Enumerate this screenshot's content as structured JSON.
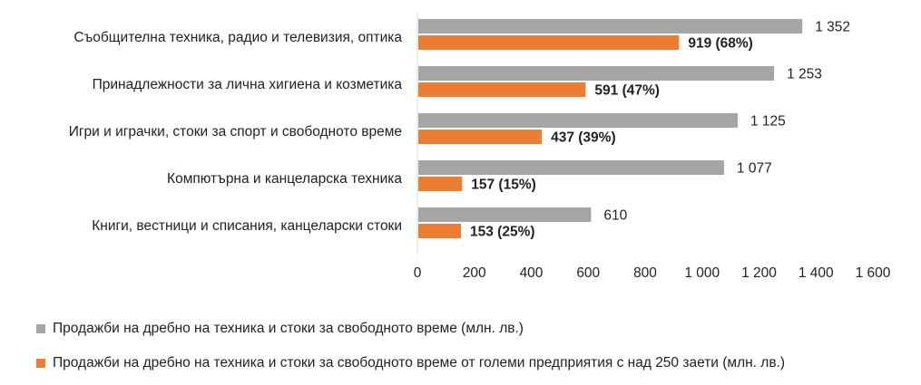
{
  "chart_data": {
    "type": "bar",
    "orientation": "horizontal",
    "categories": [
      "Съобщителна техника, радио и телевизия, оптика",
      "Принадлежности за лична хигиена и козметика",
      "Игри и играчки, стоки за спорт и свободното време",
      "Компютърна и канцеларска техника",
      "Книги, вестници и списания, канцеларски стоки"
    ],
    "series": [
      {
        "name": "Продажби на дребно на техника и стоки за свободното време (млн. лв.)",
        "color": "#a5a5a5",
        "values": [
          1352,
          1253,
          1125,
          1077,
          610
        ],
        "labels": [
          "1 352",
          "1 253",
          "1 125",
          "1 077",
          "610"
        ]
      },
      {
        "name": "Продажби на дребно на техника и стоки за свободното време от големи предприятия с над 250 заети (млн. лв.)",
        "color": "#ed7d31",
        "values": [
          919,
          591,
          437,
          157,
          153
        ],
        "labels": [
          "919 (68%)",
          "591 (47%)",
          "437 (39%)",
          "157 (15%)",
          "153 (25%)"
        ]
      }
    ],
    "xlim": [
      0,
      1600
    ],
    "xticks": [
      0,
      200,
      400,
      600,
      800,
      1000,
      1200,
      1400,
      1600
    ],
    "xtick_labels": [
      "0",
      "200",
      "400",
      "600",
      "800",
      "1 000",
      "1 200",
      "1 400",
      "1 600"
    ],
    "grid": false,
    "legend_position": "bottom"
  }
}
